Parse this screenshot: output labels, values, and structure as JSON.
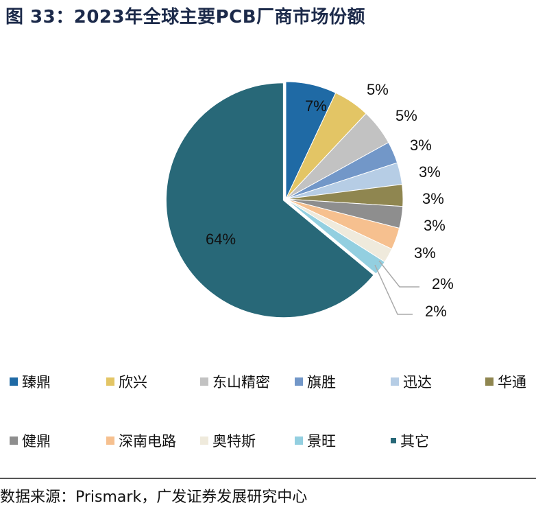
{
  "title": "图 33：2023年全球主要PCB厂商市场份额",
  "chart_data": {
    "type": "pie",
    "title": "图 33：2023年全球主要PCB厂商市场份额",
    "categories": [
      "臻鼎",
      "欣兴",
      "东山精密",
      "旗胜",
      "迅达",
      "华通",
      "健鼎",
      "深南电路",
      "奥特斯",
      "景旺",
      "其它"
    ],
    "values": [
      7,
      5,
      5,
      3,
      3,
      3,
      3,
      3,
      2,
      2,
      64
    ],
    "labels": [
      "7%",
      "5%",
      "5%",
      "3%",
      "3%",
      "3%",
      "3%",
      "3%",
      "2%",
      "2%",
      "64%"
    ],
    "colors": [
      "#1f6aa5",
      "#e3c565",
      "#c2c2c2",
      "#7297c8",
      "#b6cde5",
      "#8f8650",
      "#8e8e8e",
      "#f6c08f",
      "#efeadc",
      "#93cfe0",
      "#286878"
    ],
    "start_angle": "12 o'clock",
    "direction": "clockwise",
    "exploded": [
      "其它"
    ],
    "legend_position": "bottom"
  },
  "source": "数据来源：Prismark，广发证券发展研究中心"
}
